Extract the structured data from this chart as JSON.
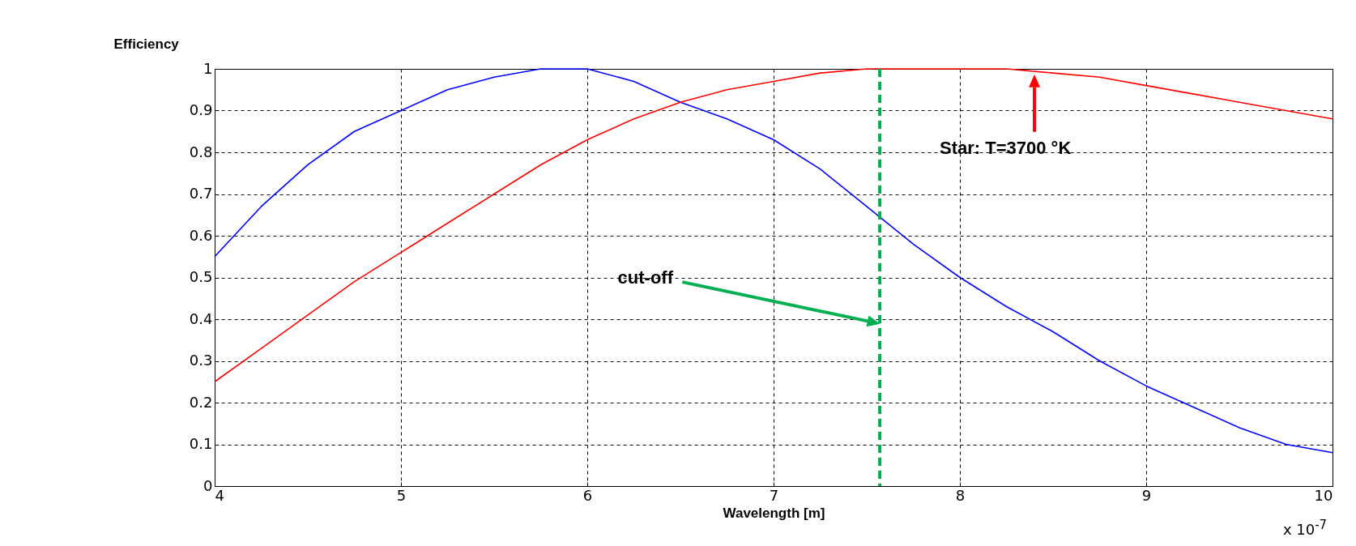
{
  "chart_data": {
    "type": "line",
    "xlabel": "Wavelength [m]",
    "ylabel": "Efficiency",
    "x": [
      4,
      4.25,
      4.5,
      4.75,
      5,
      5.25,
      5.5,
      5.75,
      6,
      6.25,
      6.5,
      6.75,
      7,
      7.25,
      7.5,
      7.75,
      8,
      8.25,
      8.5,
      8.75,
      9,
      9.25,
      9.5,
      9.75,
      10
    ],
    "series": [
      {
        "color": "#0000ff",
        "values": [
          0.55,
          0.67,
          0.77,
          0.85,
          0.9,
          0.95,
          0.98,
          1.0,
          1.0,
          0.97,
          0.92,
          0.88,
          0.83,
          0.76,
          0.67,
          0.58,
          0.5,
          0.43,
          0.37,
          0.3,
          0.24,
          0.19,
          0.14,
          0.1,
          0.08
        ]
      },
      {
        "color": "#ff0000",
        "values": [
          0.25,
          0.33,
          0.41,
          0.49,
          0.56,
          0.63,
          0.7,
          0.77,
          0.83,
          0.88,
          0.92,
          0.95,
          0.97,
          0.99,
          1.0,
          1.0,
          1.0,
          1.0,
          0.99,
          0.98,
          0.96,
          0.94,
          0.92,
          0.9,
          0.88
        ]
      }
    ],
    "xlim": [
      4,
      10
    ],
    "xticks": [
      4,
      5,
      6,
      7,
      8,
      9,
      10
    ],
    "ylim": [
      0,
      1
    ],
    "yticks": [
      0,
      0.1,
      0.2,
      0.3,
      0.4,
      0.5,
      0.6,
      0.7,
      0.8,
      0.9,
      1
    ],
    "grid": true,
    "ref_lines": [
      {
        "axis": "x",
        "value": 7.57,
        "color": "#00b050",
        "line_style": "dashed"
      }
    ],
    "annotations": [
      "Star: T=3700 °K",
      "cut-off",
      "x 10$^{-7}$"
    ]
  }
}
